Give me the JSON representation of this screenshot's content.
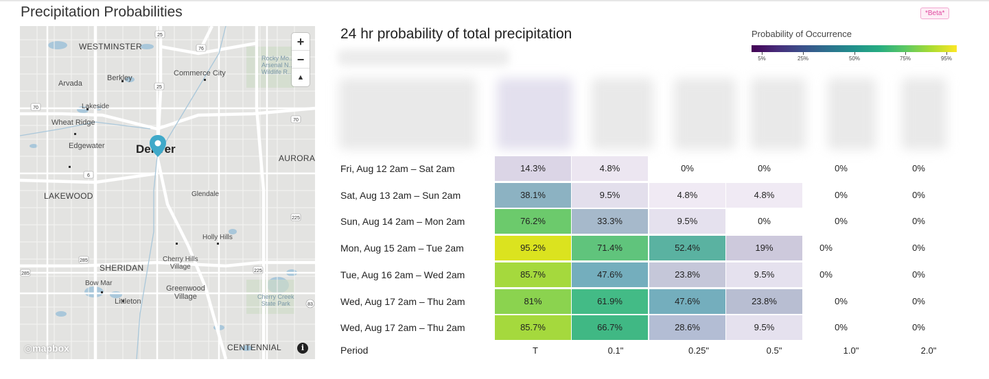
{
  "section_title": "Precipitation Probabilities",
  "beta_badge": "*Beta*",
  "map": {
    "labels": {
      "westminster": "WESTMINSTER",
      "berkley": "Berkley",
      "arvada": "Arvada",
      "commerce_city": "Commerce City",
      "lakeside": "Lakeside",
      "wheat_ridge": "Wheat Ridge",
      "edgewater": "Edgewater",
      "denver": "Denver",
      "aurora": "AURORA",
      "lakewood": "LAKEWOOD",
      "glendale": "Glendale",
      "holly_hills": "Holly Hills",
      "sheridan": "SHERIDAN",
      "cherry_hills": "Cherry Hills\nVillage",
      "bow_mar": "Bow Mar",
      "greenwood": "Greenwood\nVillage",
      "littleton": "Littleton",
      "cherry_creek": "Cherry Creek\nState Park",
      "centennial": "CENTENNIAL",
      "rocky_mountain": "Rocky Mo...\nArsenal N...\nWildlife R..."
    },
    "highway_shields": [
      "25",
      "76",
      "25",
      "70",
      "76",
      "270",
      "70",
      "6",
      "225",
      "225",
      "285",
      "285",
      "225",
      "83"
    ],
    "zoom_in": "+",
    "zoom_out": "−",
    "compass": "▲",
    "attribution": "mapbox",
    "info": "i"
  },
  "chart": {
    "title": "24 hr probability of total precipitation",
    "legend": {
      "title": "Probability of Occurrence",
      "ticks": [
        "5%",
        "25%",
        "50%",
        "75%",
        "95%"
      ]
    },
    "period_header": "Period",
    "columns": [
      "T",
      "0.1\"",
      "0.25\"",
      "0.5\"",
      "1.0\"",
      "2.0\""
    ],
    "rows": [
      {
        "label": "Fri, Aug 12 2am – Sat 2am",
        "values": [
          "14.3%",
          "4.8%",
          "0%",
          "0%",
          "0%",
          "0%"
        ],
        "colors": [
          "#dbd5e6",
          "#ece6f1",
          null,
          null,
          null,
          null
        ]
      },
      {
        "label": "Sat, Aug 13 2am – Sun 2am",
        "values": [
          "38.1%",
          "9.5%",
          "4.8%",
          "4.8%",
          "0%",
          "0%"
        ],
        "colors": [
          "#8cb2c2",
          "#e3dfec",
          "#f0eaf4",
          "#f0eaf4",
          null,
          null
        ]
      },
      {
        "label": "Sun, Aug 14 2am – Mon 2am",
        "values": [
          "76.2%",
          "33.3%",
          "9.5%",
          "0%",
          "0%",
          "0%"
        ],
        "colors": [
          "#6cca6c",
          "#a6b9cb",
          "#e5e1ee",
          null,
          null,
          null
        ]
      },
      {
        "label": "Mon, Aug 15 2am – Tue 2am",
        "values": [
          "95.2%",
          "71.4%",
          "52.4%",
          "19%",
          "0%",
          "0%"
        ],
        "colors": [
          "#dbe31f",
          "#60c47c",
          "#5ab2a1",
          "#cdc9dc",
          null,
          null
        ]
      },
      {
        "label": "Tue, Aug 16 2am – Wed 2am",
        "values": [
          "85.7%",
          "47.6%",
          "23.8%",
          "9.5%",
          "0%",
          "0%"
        ],
        "colors": [
          "#a5d93d",
          "#74aebd",
          "#c5c7d9",
          "#e5e1ee",
          null,
          null
        ]
      },
      {
        "label": "Wed, Aug 17 2am – Thu 2am",
        "values": [
          "81%",
          "61.9%",
          "47.6%",
          "23.8%",
          "0%",
          "0%"
        ],
        "colors": [
          "#8bd34f",
          "#43bb86",
          "#74aebd",
          "#b8bed2",
          null,
          null
        ]
      },
      {
        "label": "Wed, Aug 17 2am – Thu 2am",
        "values": [
          "85.7%",
          "66.7%",
          "28.6%",
          "9.5%",
          "0%",
          "0%"
        ],
        "colors": [
          "#a5d93d",
          "#40b884",
          "#b3bdd4",
          "#e5e1ee",
          null,
          null
        ]
      }
    ]
  }
}
